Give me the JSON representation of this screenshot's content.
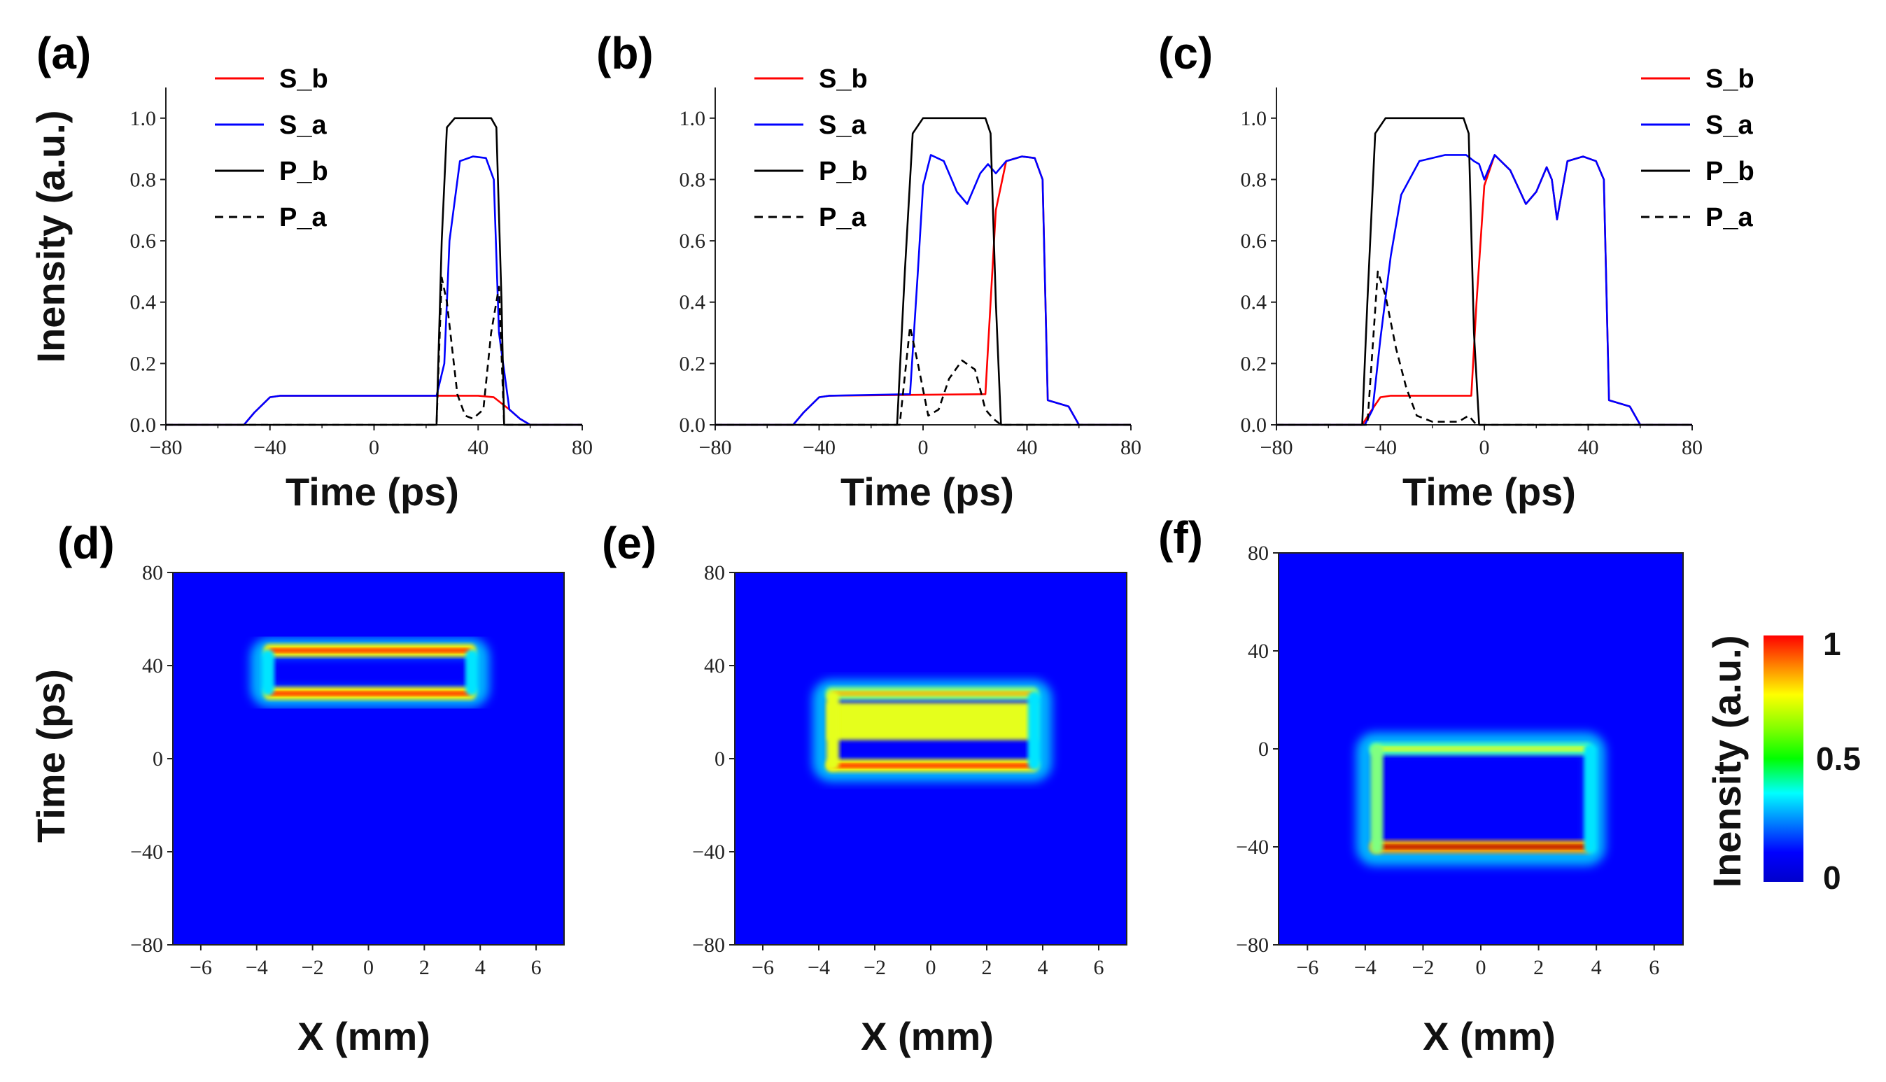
{
  "figure": {
    "panels": [
      {
        "label": "(a)",
        "xlabel": "Time (ps)",
        "ylabel": "Inensity (a.u.)",
        "xticks": [
          "−80",
          "−40",
          "0",
          "40",
          "80"
        ],
        "yticks": [
          "0.0",
          "0.2",
          "0.4",
          "0.6",
          "0.8",
          "1.0"
        ]
      },
      {
        "label": "(b)",
        "xlabel": "Time (ps)",
        "xticks": [
          "−80",
          "−40",
          "0",
          "40",
          "80"
        ],
        "yticks": [
          "0.0",
          "0.2",
          "0.4",
          "0.6",
          "0.8",
          "1.0"
        ]
      },
      {
        "label": "(c)",
        "xlabel": "Time (ps)",
        "xticks": [
          "−80",
          "−40",
          "0",
          "40",
          "80"
        ],
        "yticks": [
          "0.0",
          "0.2",
          "0.4",
          "0.6",
          "0.8",
          "1.0"
        ]
      },
      {
        "label": "(d)",
        "xlabel": "X (mm)",
        "ylabel": "Time (ps)",
        "xticks": [
          "−6",
          "−4",
          "−2",
          "0",
          "2",
          "4",
          "6"
        ],
        "yticks": [
          "−80",
          "−40",
          "0",
          "40",
          "80"
        ]
      },
      {
        "label": "(e)",
        "xlabel": "X (mm)",
        "xticks": [
          "−6",
          "−4",
          "−2",
          "0",
          "2",
          "4",
          "6"
        ],
        "yticks": [
          "−80",
          "−40",
          "0",
          "40",
          "80"
        ]
      },
      {
        "label": "(f)",
        "xlabel": "X (mm)",
        "xticks": [
          "−6",
          "−4",
          "−2",
          "0",
          "2",
          "4",
          "6"
        ],
        "yticks": [
          "−80",
          "−40",
          "0",
          "40",
          "80"
        ]
      }
    ],
    "colorbar": {
      "label": "Inensity (a.u.)",
      "ticks": [
        "1",
        "0.5",
        "0"
      ]
    }
  },
  "chart_data": [
    {
      "type": "line",
      "panel": "(a)",
      "xlim": [
        -80,
        80
      ],
      "ylim": [
        0,
        1.1
      ],
      "legend_position": "top-left",
      "series": [
        {
          "name": "S_b",
          "color": "#ff0000",
          "style": "solid",
          "x": [
            -80,
            -50,
            -46,
            -40,
            -36,
            24,
            40,
            46,
            52,
            56,
            60,
            80
          ],
          "y": [
            0,
            0,
            0.04,
            0.09,
            0.095,
            0.095,
            0.095,
            0.09,
            0.05,
            0.02,
            0,
            0
          ]
        },
        {
          "name": "S_a",
          "color": "#0000ff",
          "style": "solid",
          "x": [
            -80,
            -50,
            -46,
            -40,
            -36,
            24,
            27,
            29,
            33,
            38,
            43,
            46,
            48,
            52,
            56,
            60,
            80
          ],
          "y": [
            0,
            0,
            0.04,
            0.09,
            0.095,
            0.095,
            0.2,
            0.6,
            0.86,
            0.875,
            0.87,
            0.8,
            0.3,
            0.05,
            0.02,
            0,
            0
          ]
        },
        {
          "name": "P_b",
          "color": "#000000",
          "style": "solid",
          "x": [
            -80,
            24,
            26,
            28,
            31,
            45,
            47,
            49,
            50,
            80
          ],
          "y": [
            0,
            0,
            0.6,
            0.97,
            1.0,
            1.0,
            0.97,
            0.4,
            0,
            0
          ]
        },
        {
          "name": "P_a",
          "color": "#000000",
          "style": "dashed",
          "x": [
            -80,
            24,
            26,
            28,
            32,
            35,
            38,
            42,
            45,
            48,
            50,
            80
          ],
          "y": [
            0,
            0,
            0.48,
            0.4,
            0.1,
            0.03,
            0.02,
            0.05,
            0.3,
            0.45,
            0,
            0
          ]
        }
      ]
    },
    {
      "type": "line",
      "panel": "(b)",
      "xlim": [
        -80,
        80
      ],
      "ylim": [
        0,
        1.1
      ],
      "legend_position": "top-left",
      "series": [
        {
          "name": "S_b",
          "color": "#ff0000",
          "style": "solid",
          "x": [
            -80,
            -50,
            -46,
            -40,
            -36,
            24,
            26,
            28,
            32,
            38,
            43,
            46,
            48,
            56,
            60,
            80
          ],
          "y": [
            0,
            0,
            0.04,
            0.09,
            0.095,
            0.1,
            0.4,
            0.7,
            0.86,
            0.875,
            0.87,
            0.8,
            0.08,
            0.06,
            0,
            0
          ]
        },
        {
          "name": "S_a",
          "color": "#0000ff",
          "style": "solid",
          "x": [
            -80,
            -50,
            -46,
            -40,
            -36,
            -5,
            -2,
            0,
            3,
            8,
            13,
            17,
            22,
            25,
            28,
            32,
            38,
            43,
            46,
            48,
            56,
            60,
            80
          ],
          "y": [
            0,
            0,
            0.04,
            0.09,
            0.095,
            0.1,
            0.5,
            0.78,
            0.88,
            0.86,
            0.76,
            0.72,
            0.82,
            0.85,
            0.82,
            0.86,
            0.875,
            0.87,
            0.8,
            0.08,
            0.06,
            0,
            0
          ]
        },
        {
          "name": "P_b",
          "color": "#000000",
          "style": "solid",
          "x": [
            -80,
            -10,
            -7,
            -4,
            0,
            24,
            26,
            28,
            30,
            80
          ],
          "y": [
            0,
            0,
            0.5,
            0.95,
            1.0,
            1.0,
            0.95,
            0.4,
            0,
            0
          ]
        },
        {
          "name": "P_a",
          "color": "#000000",
          "style": "dashed",
          "x": [
            -80,
            -9,
            -5,
            -2,
            2,
            6,
            10,
            15,
            20,
            24,
            27,
            30,
            80
          ],
          "y": [
            0,
            0,
            0.32,
            0.2,
            0.03,
            0.05,
            0.15,
            0.21,
            0.18,
            0.05,
            0.02,
            0,
            0
          ]
        }
      ]
    },
    {
      "type": "line",
      "panel": "(c)",
      "xlim": [
        -80,
        80
      ],
      "ylim": [
        0,
        1.1
      ],
      "legend_position": "top-right",
      "series": [
        {
          "name": "S_b",
          "color": "#ff0000",
          "style": "solid",
          "x": [
            -80,
            -47,
            -44,
            -40,
            -36,
            -5,
            -3,
            0,
            4,
            10,
            16,
            20,
            24,
            26,
            28,
            32,
            38,
            43,
            46,
            48,
            56,
            60,
            80
          ],
          "y": [
            0,
            0,
            0.04,
            0.09,
            0.095,
            0.095,
            0.4,
            0.78,
            0.88,
            0.83,
            0.72,
            0.76,
            0.84,
            0.8,
            0.67,
            0.86,
            0.875,
            0.86,
            0.8,
            0.08,
            0.06,
            0,
            0
          ]
        },
        {
          "name": "S_a",
          "color": "#0000ff",
          "style": "solid",
          "x": [
            -80,
            -46,
            -43,
            -40,
            -36,
            -32,
            -25,
            -15,
            -7,
            -4,
            -2,
            0,
            4,
            10,
            16,
            20,
            24,
            26,
            28,
            32,
            38,
            43,
            46,
            48,
            56,
            60,
            80
          ],
          "y": [
            0,
            0,
            0.05,
            0.28,
            0.55,
            0.75,
            0.86,
            0.88,
            0.88,
            0.86,
            0.85,
            0.8,
            0.88,
            0.83,
            0.72,
            0.76,
            0.84,
            0.8,
            0.67,
            0.86,
            0.875,
            0.86,
            0.8,
            0.08,
            0.06,
            0,
            0
          ]
        },
        {
          "name": "P_b",
          "color": "#000000",
          "style": "solid",
          "x": [
            -80,
            -47,
            -45,
            -42,
            -38,
            -8,
            -6,
            -4,
            -2,
            80
          ],
          "y": [
            0,
            0,
            0.4,
            0.95,
            1.0,
            1.0,
            0.95,
            0.3,
            0,
            0
          ]
        },
        {
          "name": "P_a",
          "color": "#000000",
          "style": "dashed",
          "x": [
            -80,
            -45,
            -41,
            -38,
            -34,
            -30,
            -26,
            -20,
            -10,
            -6,
            -3,
            80
          ],
          "y": [
            0,
            0,
            0.5,
            0.42,
            0.25,
            0.12,
            0.03,
            0.01,
            0.01,
            0.03,
            0,
            0
          ]
        }
      ]
    },
    {
      "type": "heatmap",
      "panel": "(d)",
      "xlim": [
        -7,
        7
      ],
      "ylim": [
        -80,
        80
      ],
      "frame": {
        "x0": -3.9,
        "x1": 4.0,
        "t0": 26,
        "t1": 48
      },
      "edges": [
        {
          "side": "top",
          "t": 46.5,
          "value": 0.85
        },
        {
          "side": "bottom",
          "t": 28,
          "value": 0.85
        },
        {
          "side": "left",
          "x": -3.6,
          "value": 0.35
        },
        {
          "side": "right",
          "x": 3.7,
          "value": 0.35
        }
      ]
    },
    {
      "type": "heatmap",
      "panel": "(e)",
      "xlim": [
        -7,
        7
      ],
      "ylim": [
        -80,
        80
      ],
      "frame": {
        "x0": -3.9,
        "x1": 4.0,
        "t0": -6,
        "t1": 30
      },
      "edges": [
        {
          "side": "top",
          "t": 28,
          "value": 0.7
        },
        {
          "side": "bottom",
          "t": -3,
          "value": 0.85
        },
        {
          "side": "left",
          "x": -3.5,
          "value": 0.6
        },
        {
          "side": "right",
          "x": 3.7,
          "value": 0.35
        }
      ],
      "band": {
        "t0": 8,
        "t1": 24,
        "value": 0.6
      }
    },
    {
      "type": "heatmap",
      "panel": "(f)",
      "xlim": [
        -7,
        7
      ],
      "ylim": [
        -80,
        80
      ],
      "frame": {
        "x0": -4.0,
        "x1": 4.0,
        "t0": -44,
        "t1": 3
      },
      "edges": [
        {
          "side": "top",
          "t": 0,
          "value": 0.6
        },
        {
          "side": "bottom",
          "t": -40,
          "value": 0.95
        },
        {
          "side": "left",
          "x": -3.6,
          "value": 0.5
        },
        {
          "side": "right",
          "x": 3.8,
          "value": 0.35
        }
      ]
    }
  ]
}
